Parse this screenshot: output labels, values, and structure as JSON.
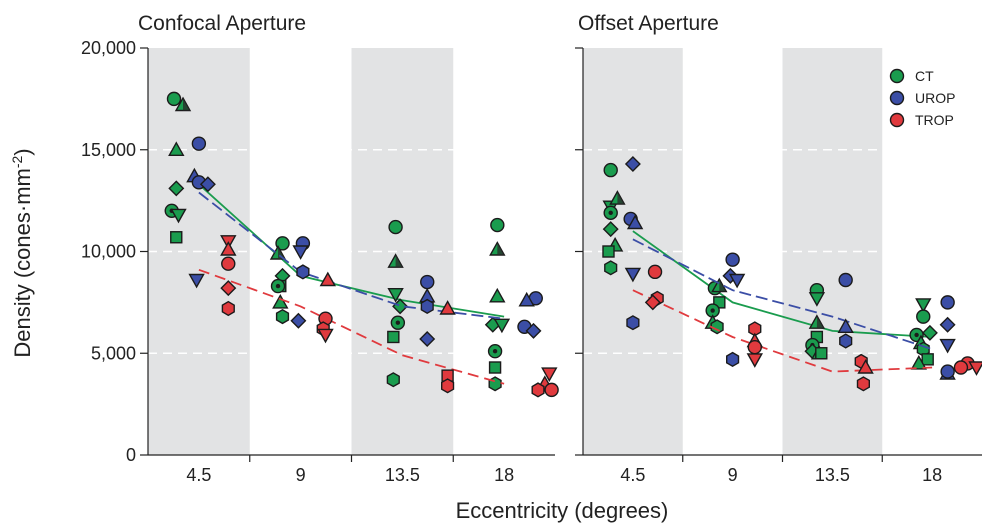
{
  "chart_data": {
    "type": "scatter",
    "xlabel": "Eccentricity (degrees)",
    "ylabel": "Density (cones·mm⁻²)",
    "ylim": [
      0,
      20000
    ],
    "yticks": [
      0,
      5000,
      10000,
      15000,
      20000
    ],
    "ytick_labels": [
      "0",
      "5,000",
      "10,000",
      "15,000",
      "20,000"
    ],
    "xtick_labels": [
      "4.5",
      "9",
      "13.5",
      "18"
    ],
    "grid": "horizontal dashed",
    "shaded_bands": [
      "4.5",
      "13.5"
    ],
    "legend_placement": "top-right",
    "colors": {
      "CT": "#1a9c4e",
      "UROP": "#3b4ea6",
      "TROP": "#e03a3e"
    },
    "legend": [
      "CT",
      "UROP",
      "TROP"
    ],
    "panels": [
      {
        "title": "Confocal Aperture",
        "series": [
          {
            "name": "CT",
            "trend": [
              [
                4.5,
                13300
              ],
              [
                9,
                8800
              ],
              [
                13.5,
                7600
              ],
              [
                18,
                6800
              ]
            ],
            "points": [
              [
                3.4,
                17500,
                "circle"
              ],
              [
                3.5,
                15000,
                "triangle-up"
              ],
              [
                3.5,
                13100,
                "diamond"
              ],
              [
                3.3,
                12000,
                "circle-dot"
              ],
              [
                3.6,
                11800,
                "triangle-down"
              ],
              [
                3.5,
                10700,
                "square"
              ],
              [
                3.8,
                17200,
                "triangle-up-dark"
              ],
              [
                8.2,
                10400,
                "circle"
              ],
              [
                8.0,
                9900,
                "triangle-up-dark"
              ],
              [
                8.2,
                8800,
                "diamond"
              ],
              [
                8.1,
                8300,
                "square"
              ],
              [
                8.0,
                8300,
                "circle-dot"
              ],
              [
                8.1,
                7500,
                "triangle-up"
              ],
              [
                8.2,
                6800,
                "hexagon"
              ],
              [
                13.2,
                11200,
                "circle"
              ],
              [
                13.2,
                9500,
                "triangle-up-dark"
              ],
              [
                13.2,
                7900,
                "triangle-down"
              ],
              [
                13.4,
                7300,
                "diamond"
              ],
              [
                13.3,
                6500,
                "circle-dot"
              ],
              [
                13.1,
                5800,
                "square"
              ],
              [
                13.1,
                3700,
                "hexagon"
              ],
              [
                17.7,
                11300,
                "circle"
              ],
              [
                17.7,
                10100,
                "triangle-up-dark"
              ],
              [
                17.7,
                7800,
                "triangle-up"
              ],
              [
                17.5,
                6400,
                "diamond"
              ],
              [
                17.9,
                6400,
                "triangle-down"
              ],
              [
                17.6,
                5100,
                "circle-dot"
              ],
              [
                17.6,
                4300,
                "square"
              ],
              [
                17.6,
                3500,
                "hexagon"
              ]
            ]
          },
          {
            "name": "UROP",
            "trend": [
              [
                4.5,
                12900
              ],
              [
                9,
                9000
              ],
              [
                13.5,
                7300
              ],
              [
                18,
                6700
              ]
            ],
            "points": [
              [
                4.5,
                15300,
                "circle"
              ],
              [
                4.3,
                13700,
                "triangle-up"
              ],
              [
                4.5,
                13400,
                "circle"
              ],
              [
                4.9,
                13300,
                "diamond"
              ],
              [
                4.4,
                8600,
                "triangle-down"
              ],
              [
                9.1,
                10400,
                "circle"
              ],
              [
                9.0,
                10000,
                "triangle-down"
              ],
              [
                9.1,
                9000,
                "hexagon"
              ],
              [
                8.9,
                6600,
                "diamond"
              ],
              [
                14.6,
                8500,
                "circle"
              ],
              [
                14.6,
                7800,
                "triangle-up"
              ],
              [
                14.6,
                7300,
                "hexagon"
              ],
              [
                14.6,
                5700,
                "diamond"
              ],
              [
                19.4,
                7700,
                "circle"
              ],
              [
                19.0,
                7600,
                "triangle-up"
              ],
              [
                18.9,
                6300,
                "circle"
              ],
              [
                19.3,
                6100,
                "diamond"
              ]
            ]
          },
          {
            "name": "TROP",
            "trend": [
              [
                4.5,
                9100
              ],
              [
                9,
                7300
              ],
              [
                13.5,
                4900
              ],
              [
                18,
                3500
              ]
            ],
            "points": [
              [
                5.8,
                10500,
                "triangle-down"
              ],
              [
                5.8,
                10100,
                "triangle-up"
              ],
              [
                5.8,
                9400,
                "circle"
              ],
              [
                5.8,
                8200,
                "diamond"
              ],
              [
                5.8,
                7200,
                "hexagon"
              ],
              [
                10.2,
                8600,
                "triangle-up"
              ],
              [
                10.1,
                6700,
                "circle"
              ],
              [
                10.0,
                6200,
                "hexagon"
              ],
              [
                10.1,
                5900,
                "triangle-down"
              ],
              [
                15.5,
                7200,
                "triangle-up"
              ],
              [
                15.5,
                3900,
                "square"
              ],
              [
                15.5,
                3400,
                "hexagon"
              ],
              [
                20.0,
                4000,
                "triangle-down"
              ],
              [
                19.8,
                3500,
                "triangle-up"
              ],
              [
                19.5,
                3200,
                "hexagon"
              ],
              [
                20.1,
                3200,
                "circle"
              ]
            ]
          }
        ]
      },
      {
        "title": "Offset Aperture",
        "series": [
          {
            "name": "CT",
            "trend": [
              [
                4.5,
                11000
              ],
              [
                9,
                7500
              ],
              [
                13.5,
                6100
              ],
              [
                18,
                5800
              ]
            ],
            "points": [
              [
                3.5,
                14000,
                "circle"
              ],
              [
                3.5,
                12200,
                "triangle-down"
              ],
              [
                3.8,
                12600,
                "triangle-up-dark"
              ],
              [
                3.5,
                11900,
                "circle-dot"
              ],
              [
                3.5,
                11100,
                "diamond"
              ],
              [
                3.7,
                10300,
                "triangle-up"
              ],
              [
                3.4,
                10000,
                "square"
              ],
              [
                3.5,
                9200,
                "hexagon"
              ],
              [
                8.2,
                8200,
                "circle"
              ],
              [
                8.4,
                8300,
                "triangle-up-dark"
              ],
              [
                8.4,
                7500,
                "square"
              ],
              [
                8.1,
                7100,
                "circle-dot"
              ],
              [
                8.1,
                6500,
                "triangle-up"
              ],
              [
                8.3,
                6300,
                "hexagon"
              ],
              [
                12.8,
                8100,
                "circle"
              ],
              [
                12.8,
                7700,
                "triangle-down"
              ],
              [
                12.8,
                6500,
                "triangle-up-dark"
              ],
              [
                12.8,
                5800,
                "square"
              ],
              [
                12.6,
                5400,
                "circle-dot"
              ],
              [
                12.6,
                5100,
                "diamond"
              ],
              [
                12.9,
                5000,
                "triangle-up"
              ],
              [
                13.0,
                5000,
                "square"
              ],
              [
                17.6,
                7400,
                "triangle-down"
              ],
              [
                17.6,
                6800,
                "circle"
              ],
              [
                17.9,
                6000,
                "diamond"
              ],
              [
                17.3,
                5900,
                "circle-dot"
              ],
              [
                17.5,
                5500,
                "triangle-up"
              ],
              [
                17.6,
                5200,
                "hexagon"
              ],
              [
                17.8,
                4700,
                "square"
              ],
              [
                17.4,
                4500,
                "triangle-up"
              ]
            ]
          },
          {
            "name": "UROP",
            "trend": [
              [
                4.5,
                10600
              ],
              [
                9,
                8100
              ],
              [
                13.5,
                6800
              ],
              [
                18,
                5200
              ]
            ],
            "points": [
              [
                4.5,
                14300,
                "diamond"
              ],
              [
                4.4,
                11600,
                "circle"
              ],
              [
                4.6,
                11400,
                "triangle-up"
              ],
              [
                4.5,
                8900,
                "triangle-down"
              ],
              [
                4.5,
                6500,
                "hexagon"
              ],
              [
                9.0,
                9600,
                "circle"
              ],
              [
                8.9,
                8800,
                "diamond"
              ],
              [
                9.2,
                8600,
                "triangle-down"
              ],
              [
                9.0,
                4700,
                "hexagon"
              ],
              [
                14.1,
                8600,
                "circle"
              ],
              [
                14.1,
                6300,
                "triangle-up"
              ],
              [
                14.1,
                5600,
                "hexagon"
              ],
              [
                18.7,
                7500,
                "circle"
              ],
              [
                18.7,
                6400,
                "diamond"
              ],
              [
                18.7,
                5400,
                "triangle-down"
              ],
              [
                18.7,
                4000,
                "triangle-up"
              ],
              [
                18.7,
                4100,
                "circle"
              ]
            ]
          },
          {
            "name": "TROP",
            "trend": [
              [
                4.5,
                8100
              ],
              [
                9,
                5800
              ],
              [
                13.5,
                4100
              ],
              [
                18,
                4300
              ]
            ],
            "points": [
              [
                5.5,
                9000,
                "circle"
              ],
              [
                5.6,
                7700,
                "hexagon"
              ],
              [
                5.4,
                7500,
                "diamond"
              ],
              [
                10.0,
                6200,
                "hexagon"
              ],
              [
                10.0,
                5600,
                "triangle-up"
              ],
              [
                10.0,
                5300,
                "circle"
              ],
              [
                10.0,
                4700,
                "triangle-down"
              ],
              [
                14.8,
                4600,
                "hexagon"
              ],
              [
                15.0,
                4300,
                "triangle-up"
              ],
              [
                14.9,
                3500,
                "hexagon"
              ],
              [
                19.6,
                4500,
                "circle"
              ],
              [
                19.3,
                4300,
                "circle"
              ],
              [
                20.0,
                4300,
                "triangle-down"
              ]
            ]
          }
        ]
      }
    ]
  }
}
